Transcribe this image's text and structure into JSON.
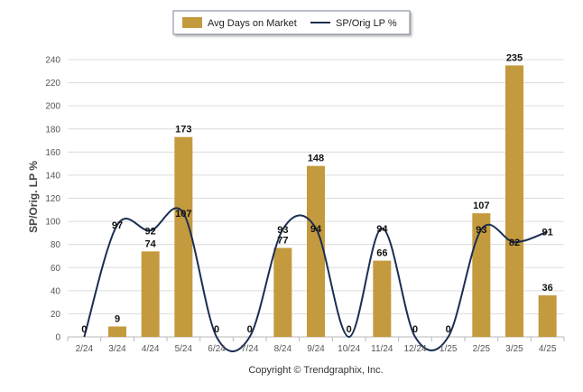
{
  "chart_data": {
    "type": "bar",
    "categories": [
      "2/24",
      "3/24",
      "4/24",
      "5/24",
      "6/24",
      "7/24",
      "8/24",
      "9/24",
      "10/24",
      "11/24",
      "12/24",
      "1/25",
      "2/25",
      "3/25",
      "4/25"
    ],
    "series": [
      {
        "name": "Avg Days on Market",
        "kind": "bar",
        "color": "#c49a3f",
        "values": [
          0,
          9,
          74,
          173,
          0,
          0,
          77,
          148,
          0,
          66,
          0,
          0,
          107,
          235,
          36
        ]
      },
      {
        "name": "SP/Orig LP %",
        "kind": "line",
        "color": "#1a2f52",
        "values": [
          0,
          97,
          92,
          107,
          0,
          0,
          93,
          94,
          0,
          94,
          0,
          0,
          93,
          82,
          91
        ]
      }
    ],
    "ylabel": "SP/Orig. LP %",
    "ylim": [
      0,
      240
    ],
    "yticks": [
      0,
      20,
      40,
      60,
      80,
      100,
      120,
      140,
      160,
      180,
      200,
      220,
      240
    ],
    "grid": true,
    "legend": "top-center"
  },
  "legend": {
    "bar_label": "Avg Days on Market",
    "line_label": "SP/Orig LP %"
  },
  "footer": {
    "copyright": "Copyright © Trendgraphix, Inc."
  }
}
